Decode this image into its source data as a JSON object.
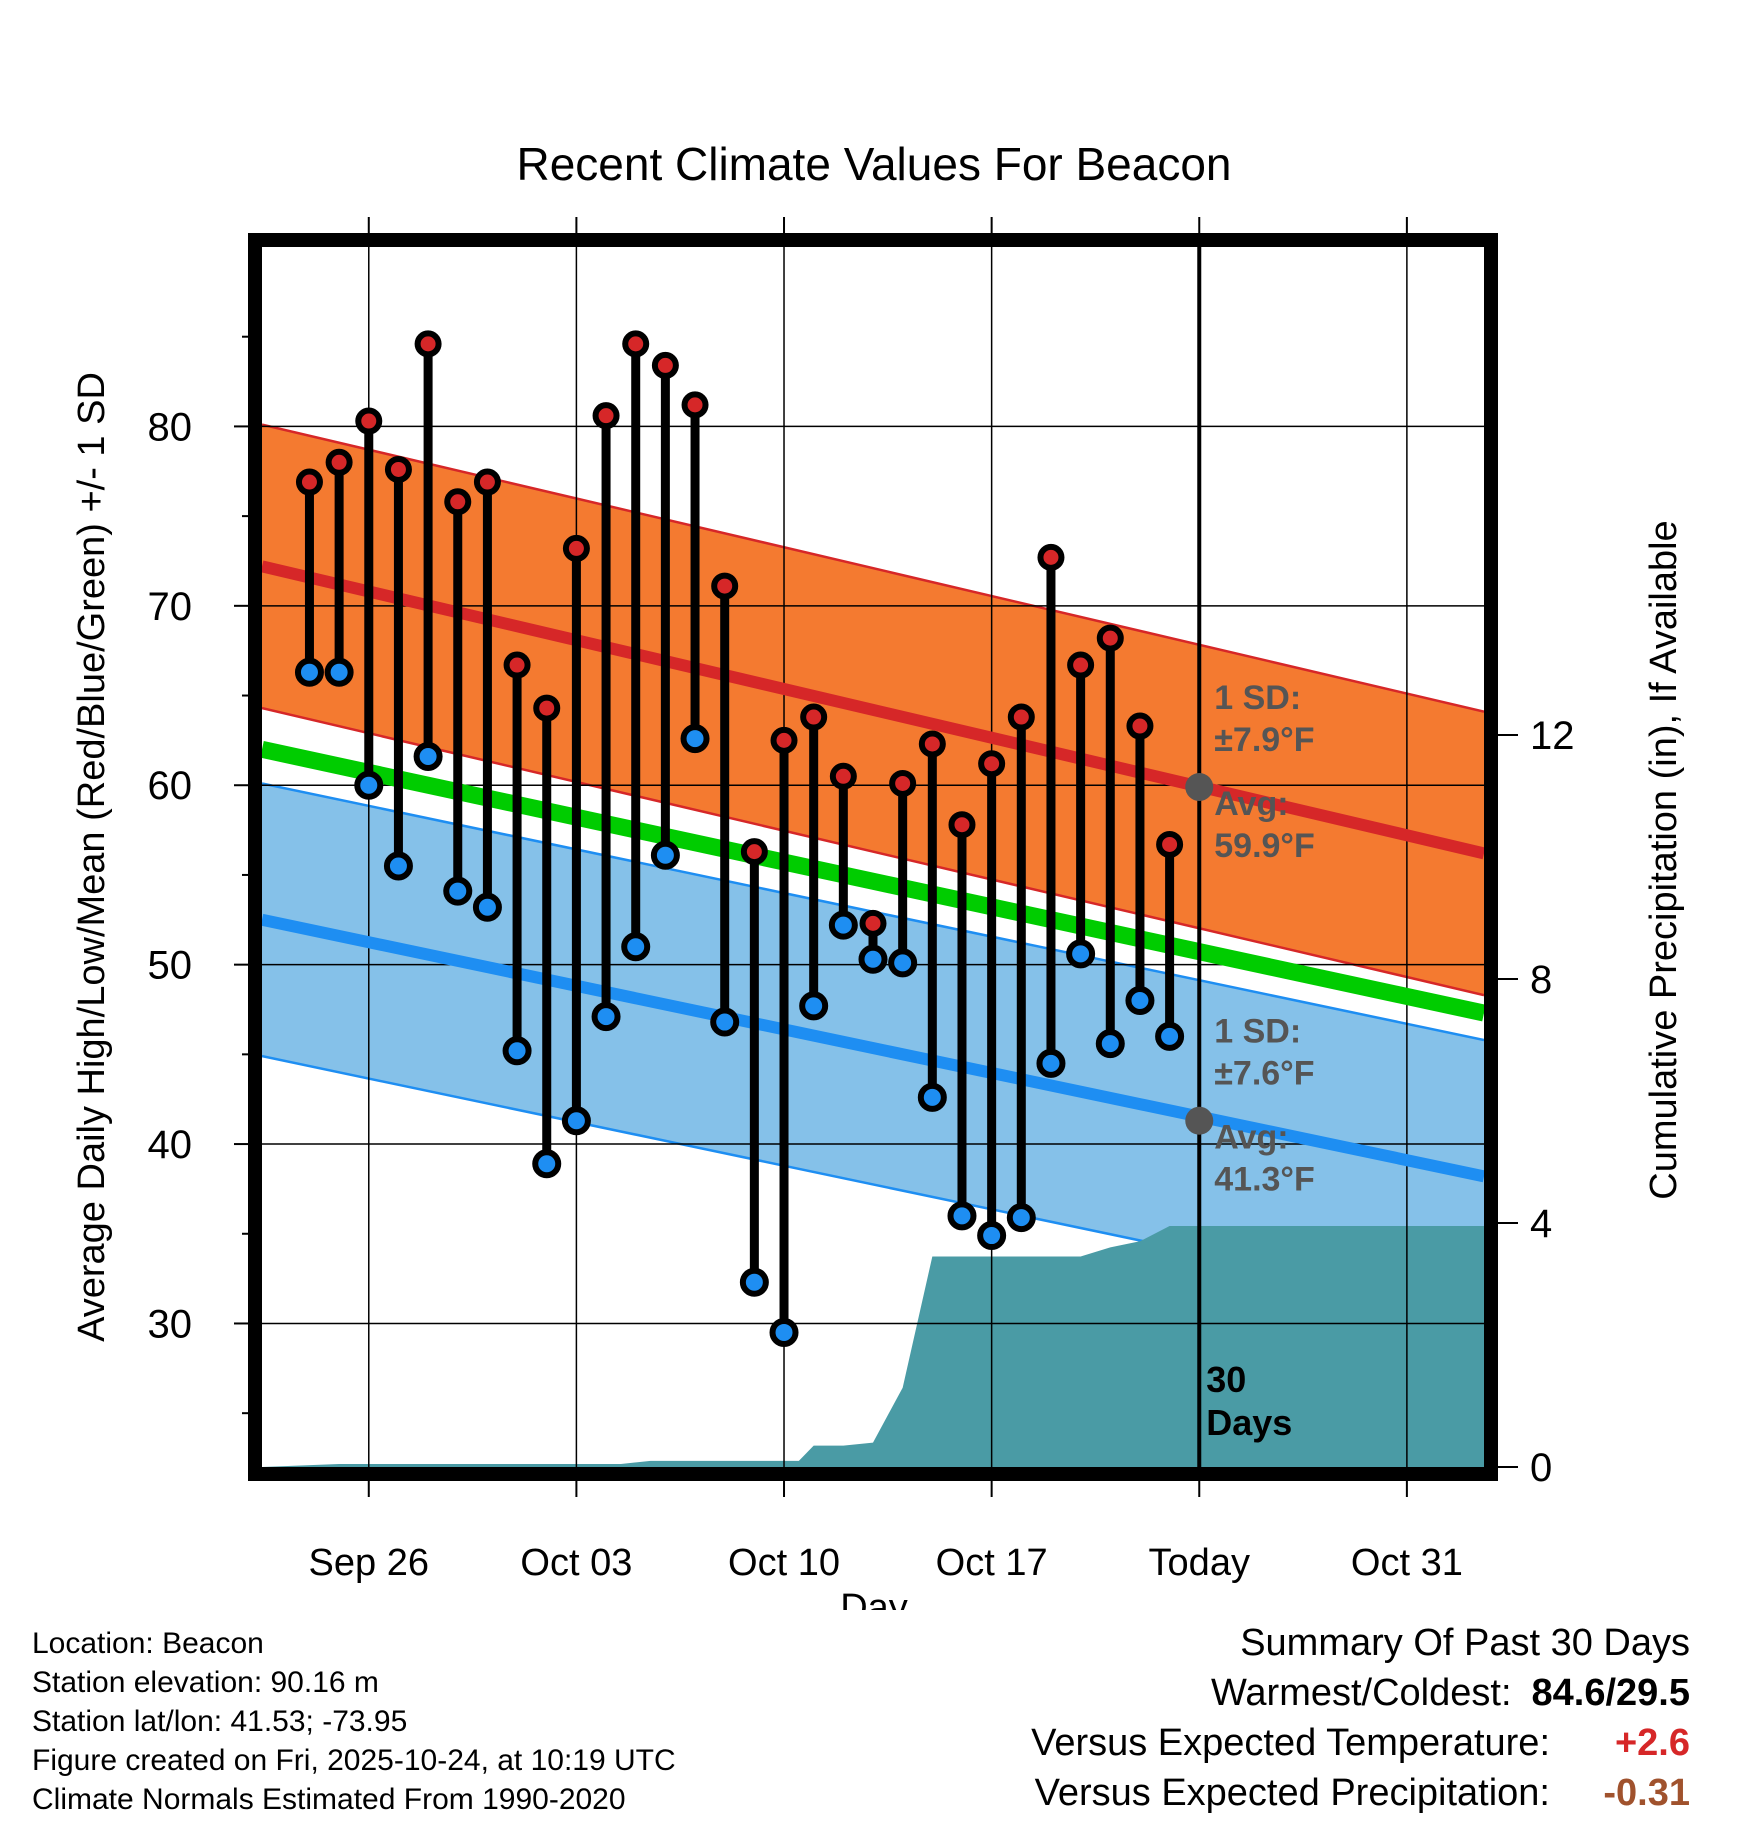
{
  "chart_data": {
    "type": "line",
    "title": "Recent Climate Values For Beacon",
    "xlabel": "Day",
    "ylabel": "Average Daily High/Low/Mean (Red/Blue/Green) +/- 1 SD",
    "y2label": "Cumulative Precipitation (in), If Available",
    "x_range": [
      -3.6,
      37.6
    ],
    "ylim": [
      22,
      90
    ],
    "y_ticks": [
      30,
      40,
      50,
      60,
      70,
      80
    ],
    "y2lim": [
      0,
      20
    ],
    "y2_ticks": [
      0,
      4,
      8,
      12
    ],
    "x_ticks": [
      {
        "x": 0,
        "label": "Sep 26"
      },
      {
        "x": 7,
        "label": "Oct 03"
      },
      {
        "x": 14,
        "label": "Oct 10"
      },
      {
        "x": 21,
        "label": "Oct 17"
      },
      {
        "x": 28,
        "label": "Today"
      },
      {
        "x": 35,
        "label": "Oct 31"
      }
    ],
    "today_x": 28,
    "today_label": "30",
    "today_label2": "Days",
    "high_normal": {
      "start": 72.2,
      "end": 56.2,
      "sd": 7.9,
      "sd_label": "1 SD:",
      "sd_text": "±7.9°F",
      "avg_label": "Avg:",
      "avg_text": "59.9°F",
      "today_avg": 59.9,
      "color": "#d62728",
      "band_color": "#f47a30"
    },
    "low_normal": {
      "start": 52.5,
      "end": 38.2,
      "sd": 7.6,
      "sd_label": "1 SD:",
      "sd_text": "±7.6°F",
      "avg_label": "Avg:",
      "avg_text": "41.3°F",
      "today_avg": 41.3,
      "color": "#1e8ef2",
      "band_color": "#85c1e9"
    },
    "mean_normal": {
      "start": 62.0,
      "end": 47.3,
      "color": "#00cc00"
    },
    "days": [
      -2,
      -1,
      0,
      1,
      2,
      3,
      4,
      5,
      6,
      7,
      8,
      9,
      10,
      11,
      12,
      13,
      14,
      15,
      16,
      17,
      18,
      19,
      20,
      21,
      22,
      23,
      24,
      25,
      26,
      27
    ],
    "highs": [
      76.9,
      78.0,
      80.3,
      77.6,
      84.6,
      75.8,
      76.9,
      66.7,
      64.3,
      73.2,
      80.6,
      84.6,
      83.4,
      81.2,
      71.1,
      56.3,
      62.5,
      63.8,
      60.5,
      52.3,
      60.1,
      62.3,
      57.8,
      61.2,
      63.8,
      72.7,
      66.7,
      68.2,
      63.3,
      56.7
    ],
    "lows": [
      66.3,
      66.3,
      60.0,
      55.5,
      61.6,
      54.1,
      53.2,
      45.2,
      38.9,
      41.3,
      47.1,
      51.0,
      56.1,
      62.6,
      46.8,
      32.3,
      29.5,
      47.7,
      52.2,
      50.3,
      50.1,
      42.6,
      36.0,
      34.9,
      35.9,
      44.5,
      50.6,
      45.6,
      48.0,
      46.0
    ],
    "precip_x": [
      -3.6,
      -1,
      8.5,
      9.5,
      10.5,
      11.5,
      12.5,
      13.5,
      14.5,
      15,
      16,
      17,
      18,
      19,
      20,
      21,
      22,
      23,
      24,
      25,
      26,
      27,
      28,
      37.6
    ],
    "precip_y": [
      0.0,
      0.05,
      0.05,
      0.1,
      0.1,
      0.1,
      0.1,
      0.1,
      0.1,
      0.35,
      0.35,
      0.4,
      1.3,
      3.45,
      3.45,
      3.45,
      3.45,
      3.45,
      3.45,
      3.6,
      3.7,
      3.95,
      3.95,
      3.95
    ]
  },
  "info": {
    "location": "Location: Beacon",
    "elevation": "Station elevation: 90.16 m",
    "latlon": "Station lat/lon: 41.53; -73.95",
    "created": "Figure created on Fri, 2025-10-24, at 10:19 UTC",
    "normals": "Climate Normals Estimated From 1990-2020"
  },
  "summary": {
    "title": "Summary Of Past 30 Days",
    "warm_label": "Warmest/Coldest:",
    "warm_value": "84.6/29.5",
    "temp_label": "Versus Expected Temperature:",
    "temp_value": "+2.6",
    "temp_color": "#d62728",
    "precip_label": "Versus Expected Precipitation:",
    "precip_value": "-0.31",
    "precip_color": "#a0522d"
  }
}
